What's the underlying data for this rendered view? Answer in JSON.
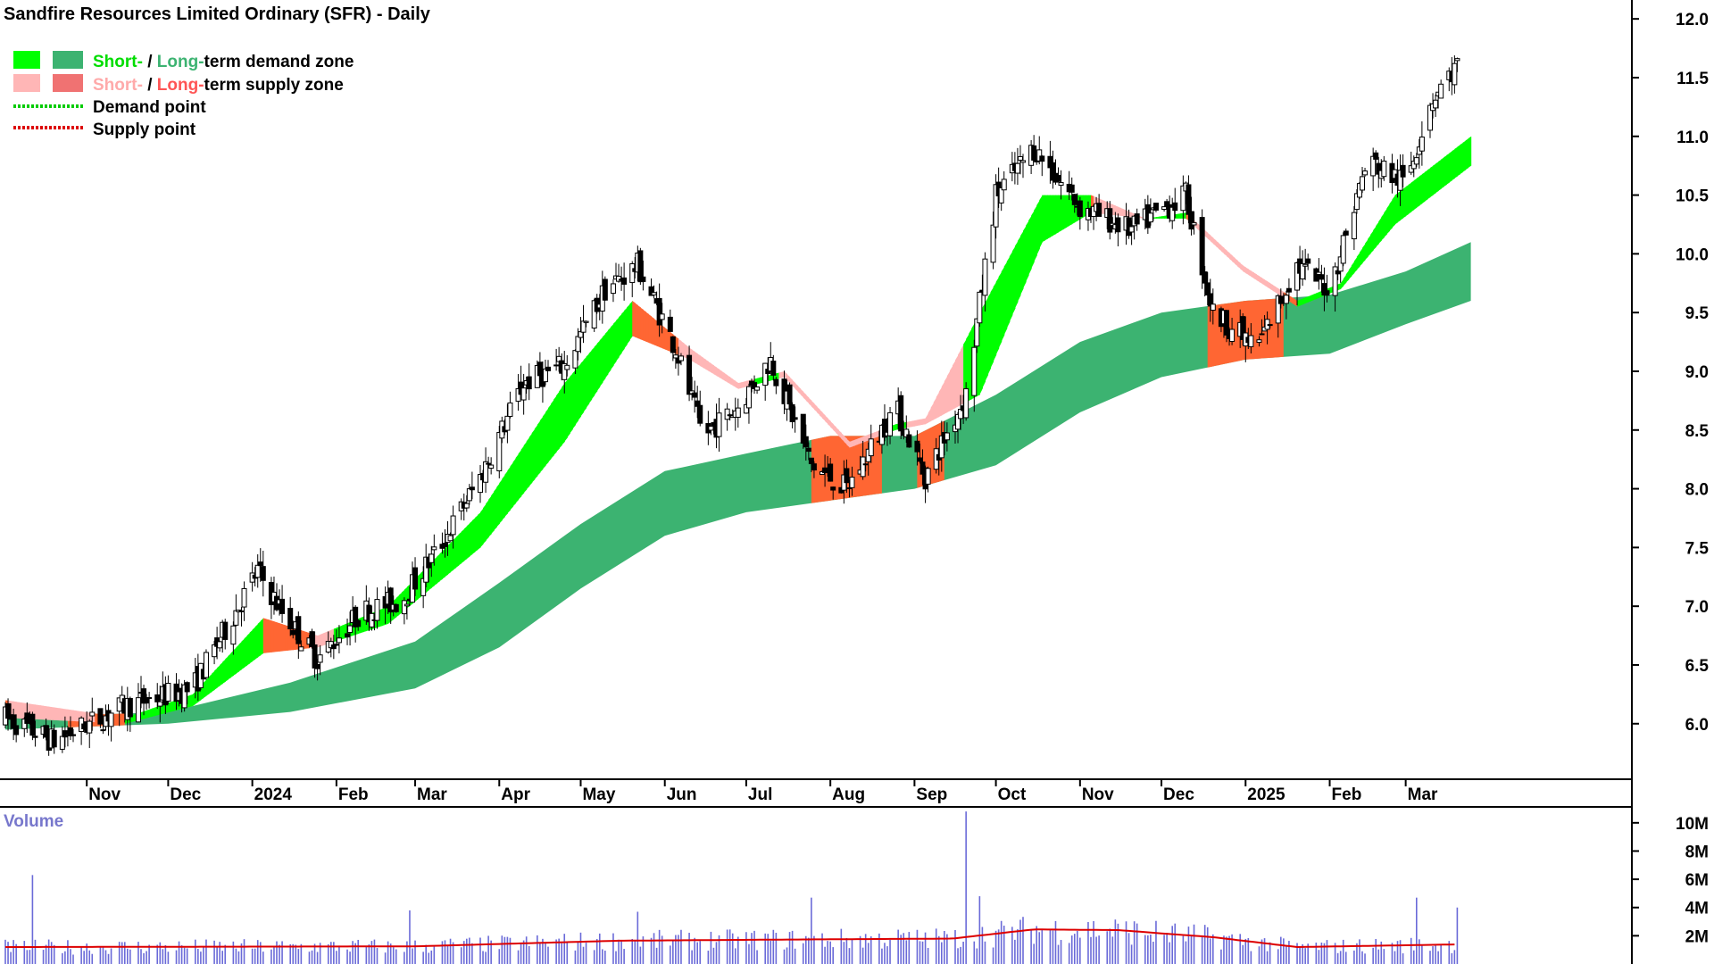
{
  "title": "Sandfire Resources Limited Ordinary (SFR) - Daily",
  "legend": {
    "row1": {
      "short": "Short-",
      "sep": " / ",
      "long": "Long-",
      "rest": "term demand zone"
    },
    "row2": {
      "short": "Short-",
      "sep": " / ",
      "long": "Long-",
      "rest": "term supply zone"
    },
    "row3": "Demand point",
    "row4": "Supply point"
  },
  "volume_label": "Volume",
  "colors": {
    "short_demand": "#00ff00",
    "long_demand": "#3cb371",
    "short_supply": "#ffb6b6",
    "long_supply": "#ff6633",
    "demand_point": "#00cc00",
    "supply_point": "#dd0000",
    "volume_bars": "#6a6ad8",
    "volume_ma": "#dd0000",
    "volume_label": "#7777cc"
  },
  "chart_data": [
    {
      "type": "candlestick",
      "title": "Sandfire Resources Limited Ordinary (SFR) - Daily",
      "x_tick_labels": [
        "Nov",
        "Dec",
        "2024",
        "Feb",
        "Mar",
        "Apr",
        "May",
        "Jun",
        "Jul",
        "Aug",
        "Sep",
        "Oct",
        "Nov",
        "Dec",
        "2025",
        "Feb",
        "Mar"
      ],
      "y_tick_labels": [
        "6.0",
        "6.5",
        "7.0",
        "7.5",
        "8.0",
        "8.5",
        "9.0",
        "9.5",
        "10.0",
        "10.5",
        "11.0",
        "11.5",
        "12.0"
      ],
      "ylim": [
        5.55,
        12.1
      ],
      "grid": false,
      "legend_position": "top-left",
      "price_path": [
        {
          "date": "2023-10-02",
          "close": 6.05
        },
        {
          "date": "2023-10-20",
          "close": 5.85
        },
        {
          "date": "2023-11-15",
          "close": 6.15
        },
        {
          "date": "2023-12-10",
          "close": 6.3
        },
        {
          "date": "2024-01-03",
          "close": 7.3
        },
        {
          "date": "2024-01-12",
          "close": 6.95
        },
        {
          "date": "2024-01-25",
          "close": 6.55
        },
        {
          "date": "2024-02-10",
          "close": 6.95
        },
        {
          "date": "2024-02-25",
          "close": 7.05
        },
        {
          "date": "2024-03-10",
          "close": 7.5
        },
        {
          "date": "2024-03-25",
          "close": 8.1
        },
        {
          "date": "2024-04-10",
          "close": 8.9
        },
        {
          "date": "2024-04-25",
          "close": 9.05
        },
        {
          "date": "2024-05-10",
          "close": 9.7
        },
        {
          "date": "2024-05-22",
          "close": 9.9
        },
        {
          "date": "2024-06-05",
          "close": 9.2
        },
        {
          "date": "2024-06-15",
          "close": 8.45
        },
        {
          "date": "2024-06-28",
          "close": 8.7
        },
        {
          "date": "2024-07-10",
          "close": 9.1
        },
        {
          "date": "2024-07-25",
          "close": 8.2
        },
        {
          "date": "2024-08-07",
          "close": 8.0
        },
        {
          "date": "2024-08-25",
          "close": 8.7
        },
        {
          "date": "2024-09-05",
          "close": 8.1
        },
        {
          "date": "2024-09-20",
          "close": 8.8
        },
        {
          "date": "2024-10-01",
          "close": 10.5
        },
        {
          "date": "2024-10-15",
          "close": 10.9
        },
        {
          "date": "2024-11-01",
          "close": 10.4
        },
        {
          "date": "2024-11-20",
          "close": 10.2
        },
        {
          "date": "2024-12-10",
          "close": 10.5
        },
        {
          "date": "2024-12-20",
          "close": 9.5
        },
        {
          "date": "2025-01-05",
          "close": 9.2
        },
        {
          "date": "2025-01-20",
          "close": 9.9
        },
        {
          "date": "2025-02-01",
          "close": 9.7
        },
        {
          "date": "2025-02-15",
          "close": 10.8
        },
        {
          "date": "2025-03-01",
          "close": 10.6
        },
        {
          "date": "2025-03-10",
          "close": 11.3
        },
        {
          "date": "2025-03-20",
          "close": 11.6
        }
      ],
      "short_term_zone_upper": [
        {
          "date": "2023-10-02",
          "value": 6.2
        },
        {
          "date": "2023-11-15",
          "value": 6.05
        },
        {
          "date": "2023-12-10",
          "value": 6.25
        },
        {
          "date": "2024-01-05",
          "value": 6.9
        },
        {
          "date": "2024-01-25",
          "value": 6.75
        },
        {
          "date": "2024-02-20",
          "value": 7.0
        },
        {
          "date": "2024-03-25",
          "value": 7.8
        },
        {
          "date": "2024-04-25",
          "value": 8.9
        },
        {
          "date": "2024-05-20",
          "value": 9.6
        },
        {
          "date": "2024-06-10",
          "value": 9.2
        },
        {
          "date": "2024-06-28",
          "value": 8.9
        },
        {
          "date": "2024-07-15",
          "value": 9.0
        },
        {
          "date": "2024-08-08",
          "value": 8.4
        },
        {
          "date": "2024-08-25",
          "value": 8.55
        },
        {
          "date": "2024-09-05",
          "value": 8.6
        },
        {
          "date": "2024-09-25",
          "value": 9.5
        },
        {
          "date": "2024-10-18",
          "value": 10.5
        },
        {
          "date": "2024-11-05",
          "value": 10.5
        },
        {
          "date": "2024-11-25",
          "value": 10.3
        },
        {
          "date": "2024-12-10",
          "value": 10.35
        },
        {
          "date": "2024-12-31",
          "value": 9.9
        },
        {
          "date": "2025-01-20",
          "value": 9.6
        },
        {
          "date": "2025-02-05",
          "value": 9.75
        },
        {
          "date": "2025-02-25",
          "value": 10.5
        },
        {
          "date": "2025-03-25",
          "value": 11.0
        }
      ],
      "short_term_zone_lower": [
        {
          "date": "2023-10-02",
          "value": 6.05
        },
        {
          "date": "2023-11-15",
          "value": 6.0
        },
        {
          "date": "2023-12-10",
          "value": 6.15
        },
        {
          "date": "2024-01-05",
          "value": 6.6
        },
        {
          "date": "2024-01-25",
          "value": 6.65
        },
        {
          "date": "2024-02-20",
          "value": 6.85
        },
        {
          "date": "2024-03-25",
          "value": 7.5
        },
        {
          "date": "2024-04-25",
          "value": 8.4
        },
        {
          "date": "2024-05-20",
          "value": 9.3
        },
        {
          "date": "2024-06-10",
          "value": 9.1
        },
        {
          "date": "2024-06-28",
          "value": 8.85
        },
        {
          "date": "2024-07-15",
          "value": 8.95
        },
        {
          "date": "2024-08-08",
          "value": 8.35
        },
        {
          "date": "2024-08-25",
          "value": 8.5
        },
        {
          "date": "2024-09-05",
          "value": 8.55
        },
        {
          "date": "2024-09-25",
          "value": 8.8
        },
        {
          "date": "2024-10-18",
          "value": 10.1
        },
        {
          "date": "2024-11-05",
          "value": 10.35
        },
        {
          "date": "2024-11-25",
          "value": 10.3
        },
        {
          "date": "2024-12-10",
          "value": 10.3
        },
        {
          "date": "2024-12-31",
          "value": 9.85
        },
        {
          "date": "2025-01-20",
          "value": 9.55
        },
        {
          "date": "2025-02-05",
          "value": 9.7
        },
        {
          "date": "2025-02-25",
          "value": 10.25
        },
        {
          "date": "2025-03-25",
          "value": 10.75
        }
      ],
      "long_term_zone_upper": [
        {
          "date": "2023-10-02",
          "value": 6.05
        },
        {
          "date": "2023-12-01",
          "value": 6.1
        },
        {
          "date": "2024-01-15",
          "value": 6.35
        },
        {
          "date": "2024-03-01",
          "value": 6.7
        },
        {
          "date": "2024-04-01",
          "value": 7.2
        },
        {
          "date": "2024-05-01",
          "value": 7.7
        },
        {
          "date": "2024-06-01",
          "value": 8.15
        },
        {
          "date": "2024-07-01",
          "value": 8.3
        },
        {
          "date": "2024-08-01",
          "value": 8.45
        },
        {
          "date": "2024-09-01",
          "value": 8.45
        },
        {
          "date": "2024-10-01",
          "value": 8.8
        },
        {
          "date": "2024-11-01",
          "value": 9.25
        },
        {
          "date": "2024-12-01",
          "value": 9.5
        },
        {
          "date": "2025-01-01",
          "value": 9.6
        },
        {
          "date": "2025-02-01",
          "value": 9.65
        },
        {
          "date": "2025-03-01",
          "value": 9.85
        },
        {
          "date": "2025-03-25",
          "value": 10.1
        }
      ],
      "long_term_zone_lower": [
        {
          "date": "2023-10-02",
          "value": 5.95
        },
        {
          "date": "2023-12-01",
          "value": 6.0
        },
        {
          "date": "2024-01-15",
          "value": 6.1
        },
        {
          "date": "2024-03-01",
          "value": 6.3
        },
        {
          "date": "2024-04-01",
          "value": 6.65
        },
        {
          "date": "2024-05-01",
          "value": 7.15
        },
        {
          "date": "2024-06-01",
          "value": 7.6
        },
        {
          "date": "2024-07-01",
          "value": 7.8
        },
        {
          "date": "2024-08-01",
          "value": 7.9
        },
        {
          "date": "2024-09-01",
          "value": 8.0
        },
        {
          "date": "2024-10-01",
          "value": 8.2
        },
        {
          "date": "2024-11-01",
          "value": 8.65
        },
        {
          "date": "2024-12-01",
          "value": 8.95
        },
        {
          "date": "2025-01-01",
          "value": 9.1
        },
        {
          "date": "2025-02-01",
          "value": 9.15
        },
        {
          "date": "2025-03-01",
          "value": 9.4
        },
        {
          "date": "2025-03-25",
          "value": 9.6
        }
      ],
      "long_term_supply_periods": [
        {
          "from": "2023-10-25",
          "to": "2023-11-15"
        },
        {
          "from": "2024-07-25",
          "to": "2024-08-20"
        },
        {
          "from": "2024-09-02",
          "to": "2024-09-12"
        },
        {
          "from": "2024-12-18",
          "to": "2025-01-15"
        }
      ]
    },
    {
      "type": "bar",
      "title": "Volume",
      "y_tick_labels": [
        "2M",
        "4M",
        "6M",
        "8M",
        "10M"
      ],
      "ylim": [
        0,
        11000000
      ],
      "volume_spikes": [
        {
          "date": "2023-10-12",
          "value": 6300000
        },
        {
          "date": "2024-02-28",
          "value": 3800000
        },
        {
          "date": "2024-05-22",
          "value": 3700000
        },
        {
          "date": "2024-07-25",
          "value": 4700000
        },
        {
          "date": "2024-09-20",
          "value": 10800000
        },
        {
          "date": "2024-09-25",
          "value": 4800000
        },
        {
          "date": "2025-03-05",
          "value": 4700000
        },
        {
          "date": "2025-03-20",
          "value": 4000000
        }
      ],
      "volume_ma": [
        {
          "date": "2023-10-02",
          "value": 1200000
        },
        {
          "date": "2024-03-01",
          "value": 1250000
        },
        {
          "date": "2024-05-15",
          "value": 1650000
        },
        {
          "date": "2024-08-01",
          "value": 1750000
        },
        {
          "date": "2024-09-15",
          "value": 1800000
        },
        {
          "date": "2024-10-15",
          "value": 2450000
        },
        {
          "date": "2024-11-15",
          "value": 2400000
        },
        {
          "date": "2024-12-20",
          "value": 1900000
        },
        {
          "date": "2025-01-20",
          "value": 1200000
        },
        {
          "date": "2025-02-20",
          "value": 1300000
        },
        {
          "date": "2025-03-25",
          "value": 1400000
        }
      ]
    }
  ]
}
